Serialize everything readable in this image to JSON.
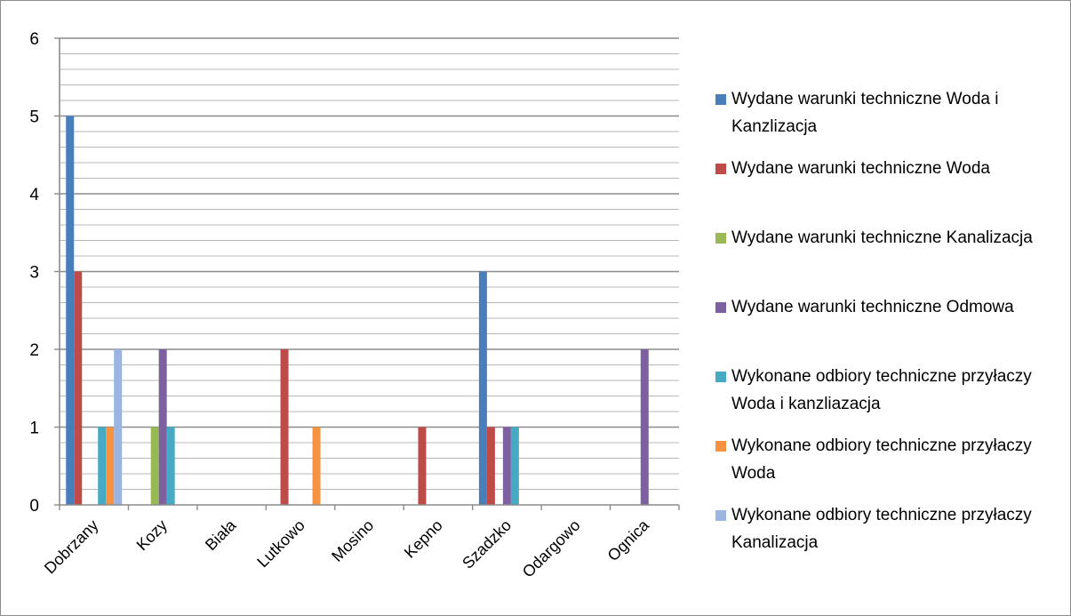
{
  "chart_data": {
    "type": "bar",
    "categories": [
      "Dobrzany",
      "Kozy",
      "Biała",
      "Lutkowo",
      "Mosino",
      "Kepno",
      "Szadzko",
      "Odargowo",
      "Ognica"
    ],
    "series": [
      {
        "name": "Wydane warunki techniczne Woda i Kanzlizacja",
        "color": "#4a7ebb",
        "values": [
          5,
          0,
          0,
          0,
          0,
          0,
          3,
          0,
          0
        ]
      },
      {
        "name": "Wydane warunki techniczne Woda",
        "color": "#be4b48",
        "values": [
          3,
          0,
          0,
          2,
          0,
          1,
          1,
          0,
          0
        ]
      },
      {
        "name": "Wydane warunki techniczne Kanalizacja",
        "color": "#98b954",
        "values": [
          0,
          1,
          0,
          0,
          0,
          0,
          0,
          0,
          0
        ]
      },
      {
        "name": "Wydane warunki techniczne Odmowa",
        "color": "#7d60a0",
        "values": [
          0,
          2,
          0,
          0,
          0,
          0,
          1,
          0,
          2
        ]
      },
      {
        "name": "Wykonane odbiory techniczne przyłaczy Woda i kanzliazacja",
        "color": "#46aac5",
        "values": [
          1,
          1,
          0,
          0,
          0,
          0,
          1,
          0,
          0
        ]
      },
      {
        "name": "Wykonane odbiory techniczne przyłaczy Woda",
        "color": "#f69240",
        "values": [
          1,
          0,
          0,
          1,
          0,
          0,
          0,
          0,
          0
        ]
      },
      {
        "name": "Wykonane odbiory techniczne przyłaczy Kanalizacja",
        "color": "#9bb5e0",
        "values": [
          2,
          0,
          0,
          0,
          0,
          0,
          0,
          0,
          0
        ]
      }
    ],
    "y_ticks": [
      "0",
      "1",
      "2",
      "3",
      "4",
      "5",
      "6"
    ],
    "ylim": [
      0,
      6
    ],
    "minor_grid_step": 0.2,
    "grid": true,
    "legend_position": "right",
    "title": "",
    "xlabel": "",
    "ylabel": ""
  }
}
